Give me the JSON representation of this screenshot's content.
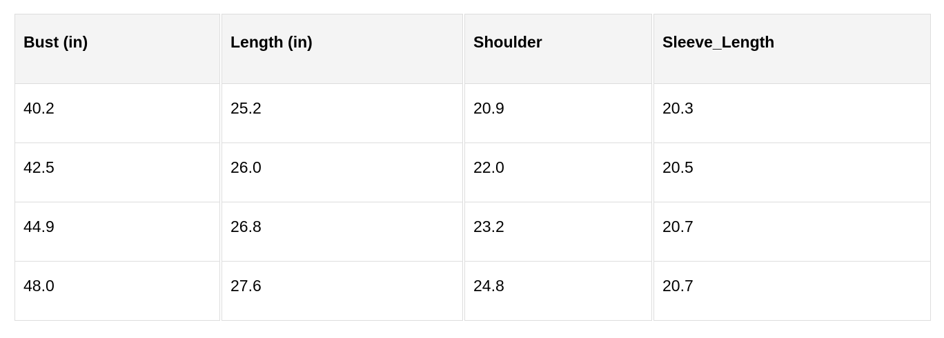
{
  "table": {
    "headers": [
      "Bust (in)",
      "Length (in)",
      "Shoulder",
      "Sleeve_Length"
    ],
    "rows": [
      [
        "40.2",
        "25.2",
        "20.9",
        "20.3"
      ],
      [
        "42.5",
        "26.0",
        "22.0",
        "20.5"
      ],
      [
        "44.9",
        "26.8",
        "23.2",
        "20.7"
      ],
      [
        "48.0",
        "27.6",
        "24.8",
        "20.7"
      ]
    ]
  }
}
